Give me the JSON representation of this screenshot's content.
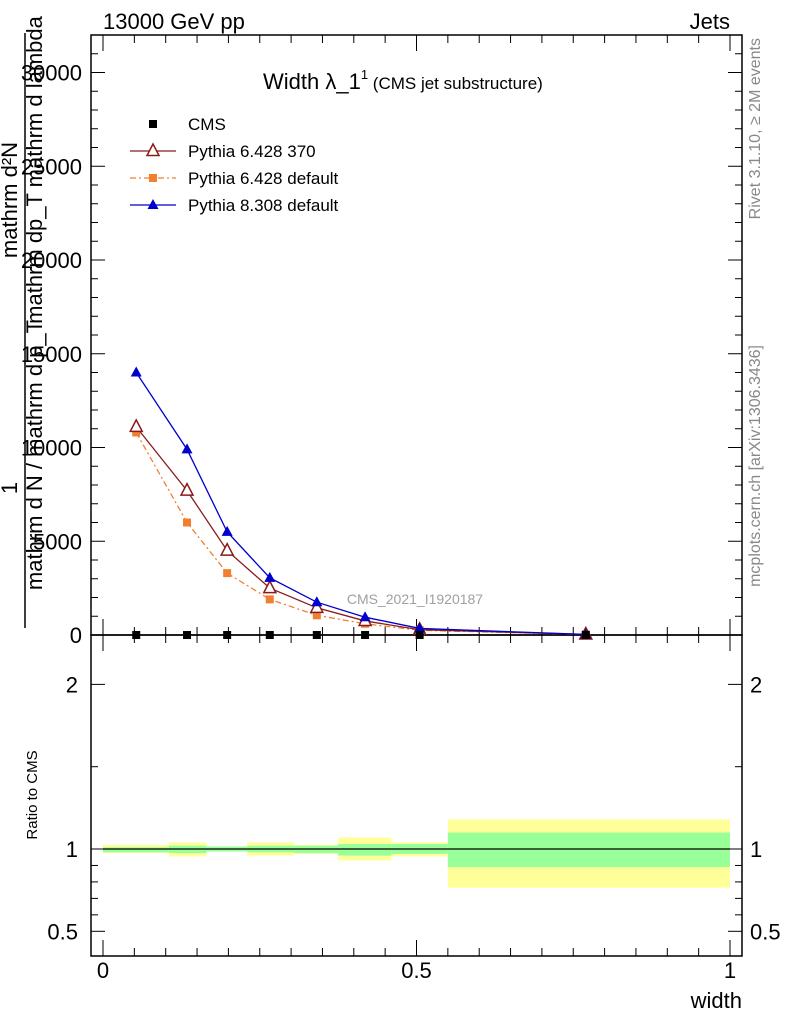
{
  "header": {
    "left": "13000 GeV pp",
    "right": "Jets"
  },
  "side_labels": {
    "rivet": "Rivet 3.1.10, ≥ 2M events",
    "mcplots": "mcplots.cern.ch [arXiv:1306.3436]"
  },
  "watermark": "CMS_2021_I1920187",
  "title": {
    "main": "Width λ_1",
    "sup": "1",
    "sub": " (CMS jet substructure)"
  },
  "ylabel": {
    "numerator_lines": [
      "mathrm d²N",
      "mathrm dp_T mathrm d lambda"
    ],
    "num_prefix": "1",
    "denominator": "mathrm d N / mathrm d p_T"
  },
  "ratio_ylabel": "Ratio to CMS",
  "xlabel": "width",
  "chart_data": [
    {
      "type": "line",
      "panel": "main",
      "ylim": [
        0,
        32000
      ],
      "xlim": [
        0,
        1
      ],
      "yticks": [
        0,
        5000,
        10000,
        15000,
        20000,
        25000,
        30000
      ],
      "ytick_labels": [
        "0",
        "5000",
        "10000",
        "15000",
        "20000",
        "25000",
        "30000"
      ],
      "legend_position": "top-left",
      "series": [
        {
          "name": "CMS",
          "color": "#000000",
          "marker": "square",
          "x": [
            0.053,
            0.134,
            0.198,
            0.266,
            0.341,
            0.418,
            0.505,
            0.77
          ],
          "y": [
            0,
            0,
            0,
            0,
            0,
            0,
            0,
            0
          ]
        },
        {
          "name": "Pythia 6.428 370",
          "color": "#8b1a1a",
          "marker": "triangle-open",
          "dash": "solid",
          "x": [
            0.053,
            0.134,
            0.198,
            0.266,
            0.341,
            0.418,
            0.505,
            0.77
          ],
          "y": [
            11100,
            7700,
            4500,
            2500,
            1450,
            750,
            280,
            30
          ]
        },
        {
          "name": "Pythia 6.428 default",
          "color": "#f08030",
          "marker": "square-small",
          "dash": "dashdot",
          "x": [
            0.053,
            0.134,
            0.198,
            0.266,
            0.341,
            0.418,
            0.505,
            0.77
          ],
          "y": [
            10800,
            6000,
            3300,
            1900,
            1050,
            600,
            250,
            30
          ]
        },
        {
          "name": "Pythia 8.308 default",
          "color": "#0000cc",
          "marker": "triangle",
          "dash": "solid",
          "x": [
            0.053,
            0.134,
            0.198,
            0.266,
            0.341,
            0.418,
            0.505,
            0.77
          ],
          "y": [
            14000,
            9900,
            5500,
            3050,
            1750,
            950,
            350,
            30
          ]
        }
      ]
    },
    {
      "type": "area",
      "panel": "ratio",
      "ylim": [
        0.35,
        2.3
      ],
      "yticks": [
        0.5,
        1,
        2
      ],
      "ytick_labels": [
        "0.5",
        "1",
        "2"
      ],
      "xlim": [
        0,
        1
      ],
      "xticks": [
        0,
        0.5,
        1
      ],
      "xtick_labels": [
        "0",
        "0.5",
        "1"
      ],
      "reference_line": 1,
      "bands": {
        "bins": [
          [
            0.0,
            0.105
          ],
          [
            0.105,
            0.165
          ],
          [
            0.165,
            0.23
          ],
          [
            0.23,
            0.305
          ],
          [
            0.305,
            0.375
          ],
          [
            0.375,
            0.46
          ],
          [
            0.46,
            0.55
          ],
          [
            0.55,
            1.0
          ]
        ],
        "stat_lo": [
          0.98,
          0.975,
          0.985,
          0.98,
          0.975,
          0.96,
          0.97,
          0.89
        ],
        "stat_hi": [
          1.01,
          1.02,
          1.015,
          1.02,
          1.02,
          1.03,
          1.03,
          1.1
        ],
        "total_lo": [
          0.975,
          0.955,
          0.985,
          0.96,
          0.97,
          0.93,
          0.955,
          0.765
        ],
        "total_hi": [
          1.025,
          1.04,
          1.015,
          1.04,
          1.025,
          1.07,
          1.04,
          1.18
        ],
        "stat_color": "#99ff99",
        "total_color": "#ffff99"
      }
    }
  ]
}
